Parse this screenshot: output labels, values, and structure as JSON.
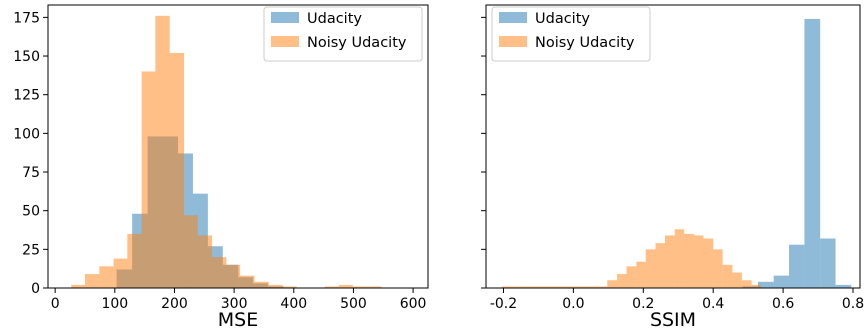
{
  "chart_data": [
    {
      "type": "bar",
      "subtype": "overlapping-histogram",
      "title": "",
      "xlabel": "MSE",
      "ylabel": "",
      "xlim": [
        -12,
        625
      ],
      "ylim": [
        0,
        183
      ],
      "xticks": [
        0,
        100,
        200,
        300,
        400,
        500,
        600
      ],
      "yticks": [
        0,
        25,
        50,
        75,
        100,
        125,
        150,
        175
      ],
      "legend_position": "top-right",
      "series": [
        {
          "name": "Udacity",
          "color": "#1f77b4",
          "alpha": 0.5,
          "bins": [
            {
              "x0": 103,
              "x1": 129,
              "value": 12
            },
            {
              "x0": 129,
              "x1": 155,
              "value": 48
            },
            {
              "x0": 155,
              "x1": 180,
              "value": 98
            },
            {
              "x0": 180,
              "x1": 206,
              "value": 98
            },
            {
              "x0": 206,
              "x1": 231,
              "value": 87
            },
            {
              "x0": 231,
              "x1": 256,
              "value": 61
            },
            {
              "x0": 256,
              "x1": 281,
              "value": 27
            },
            {
              "x0": 281,
              "x1": 307,
              "value": 15
            },
            {
              "x0": 307,
              "x1": 332,
              "value": 7
            },
            {
              "x0": 332,
              "x1": 357,
              "value": 3
            },
            {
              "x0": 357,
              "x1": 383,
              "value": 1
            }
          ]
        },
        {
          "name": "Noisy Udacity",
          "color": "#ff7f0e",
          "alpha": 0.5,
          "bins": [
            {
              "x0": 27,
              "x1": 50,
              "value": 2
            },
            {
              "x0": 50,
              "x1": 74,
              "value": 9
            },
            {
              "x0": 74,
              "x1": 98,
              "value": 14
            },
            {
              "x0": 98,
              "x1": 121,
              "value": 19
            },
            {
              "x0": 121,
              "x1": 145,
              "value": 35
            },
            {
              "x0": 145,
              "x1": 168,
              "value": 140
            },
            {
              "x0": 168,
              "x1": 192,
              "value": 176
            },
            {
              "x0": 192,
              "x1": 216,
              "value": 152
            },
            {
              "x0": 216,
              "x1": 239,
              "value": 47
            },
            {
              "x0": 239,
              "x1": 263,
              "value": 34
            },
            {
              "x0": 263,
              "x1": 287,
              "value": 20
            },
            {
              "x0": 287,
              "x1": 310,
              "value": 15
            },
            {
              "x0": 310,
              "x1": 334,
              "value": 8
            },
            {
              "x0": 334,
              "x1": 358,
              "value": 4
            },
            {
              "x0": 358,
              "x1": 381,
              "value": 2
            },
            {
              "x0": 381,
              "x1": 405,
              "value": 1
            },
            {
              "x0": 452,
              "x1": 476,
              "value": 1
            },
            {
              "x0": 476,
              "x1": 499,
              "value": 2
            },
            {
              "x0": 499,
              "x1": 523,
              "value": 1
            },
            {
              "x0": 523,
              "x1": 547,
              "value": 1
            }
          ]
        }
      ]
    },
    {
      "type": "bar",
      "subtype": "overlapping-histogram",
      "title": "",
      "xlabel": "SSIM",
      "ylabel": "",
      "xlim": [
        -0.25,
        0.82
      ],
      "ylim": [
        0,
        183
      ],
      "xticks": [
        "-0.2",
        "0.0",
        "0.2",
        "0.4",
        "0.6",
        "0.8"
      ],
      "xtick_values": [
        -0.2,
        0.0,
        0.2,
        0.4,
        0.6,
        0.8
      ],
      "legend_position": "top-left",
      "series": [
        {
          "name": "Udacity",
          "color": "#1f77b4",
          "alpha": 0.5,
          "bins": [
            {
              "x0": 0.484,
              "x1": 0.528,
              "value": 1
            },
            {
              "x0": 0.528,
              "x1": 0.573,
              "value": 4
            },
            {
              "x0": 0.573,
              "x1": 0.617,
              "value": 8
            },
            {
              "x0": 0.617,
              "x1": 0.661,
              "value": 28
            },
            {
              "x0": 0.661,
              "x1": 0.706,
              "value": 174
            },
            {
              "x0": 0.706,
              "x1": 0.75,
              "value": 32
            },
            {
              "x0": 0.75,
              "x1": 0.795,
              "value": 2
            }
          ]
        },
        {
          "name": "Noisy Udacity",
          "color": "#ff7f0e",
          "alpha": 0.5,
          "bins": [
            {
              "x0": -0.205,
              "x1": -0.178,
              "value": 1
            },
            {
              "x0": -0.178,
              "x1": -0.15,
              "value": 1
            },
            {
              "x0": -0.15,
              "x1": -0.123,
              "value": 1
            },
            {
              "x0": -0.123,
              "x1": -0.095,
              "value": 1
            },
            {
              "x0": -0.095,
              "x1": -0.068,
              "value": 1
            },
            {
              "x0": -0.068,
              "x1": -0.04,
              "value": 1
            },
            {
              "x0": -0.04,
              "x1": -0.013,
              "value": 1
            },
            {
              "x0": -0.013,
              "x1": 0.015,
              "value": 1
            },
            {
              "x0": 0.015,
              "x1": 0.042,
              "value": 1
            },
            {
              "x0": 0.042,
              "x1": 0.07,
              "value": 1
            },
            {
              "x0": 0.07,
              "x1": 0.097,
              "value": 1
            },
            {
              "x0": 0.097,
              "x1": 0.125,
              "value": 5
            },
            {
              "x0": 0.125,
              "x1": 0.152,
              "value": 9
            },
            {
              "x0": 0.152,
              "x1": 0.18,
              "value": 14
            },
            {
              "x0": 0.18,
              "x1": 0.207,
              "value": 17
            },
            {
              "x0": 0.207,
              "x1": 0.235,
              "value": 25
            },
            {
              "x0": 0.235,
              "x1": 0.262,
              "value": 29
            },
            {
              "x0": 0.262,
              "x1": 0.29,
              "value": 34
            },
            {
              "x0": 0.29,
              "x1": 0.317,
              "value": 38
            },
            {
              "x0": 0.317,
              "x1": 0.345,
              "value": 35
            },
            {
              "x0": 0.345,
              "x1": 0.372,
              "value": 34
            },
            {
              "x0": 0.372,
              "x1": 0.4,
              "value": 32
            },
            {
              "x0": 0.4,
              "x1": 0.427,
              "value": 25
            },
            {
              "x0": 0.427,
              "x1": 0.455,
              "value": 15
            },
            {
              "x0": 0.455,
              "x1": 0.482,
              "value": 10
            },
            {
              "x0": 0.482,
              "x1": 0.51,
              "value": 5
            },
            {
              "x0": 0.51,
              "x1": 0.537,
              "value": 2
            }
          ]
        }
      ]
    }
  ]
}
